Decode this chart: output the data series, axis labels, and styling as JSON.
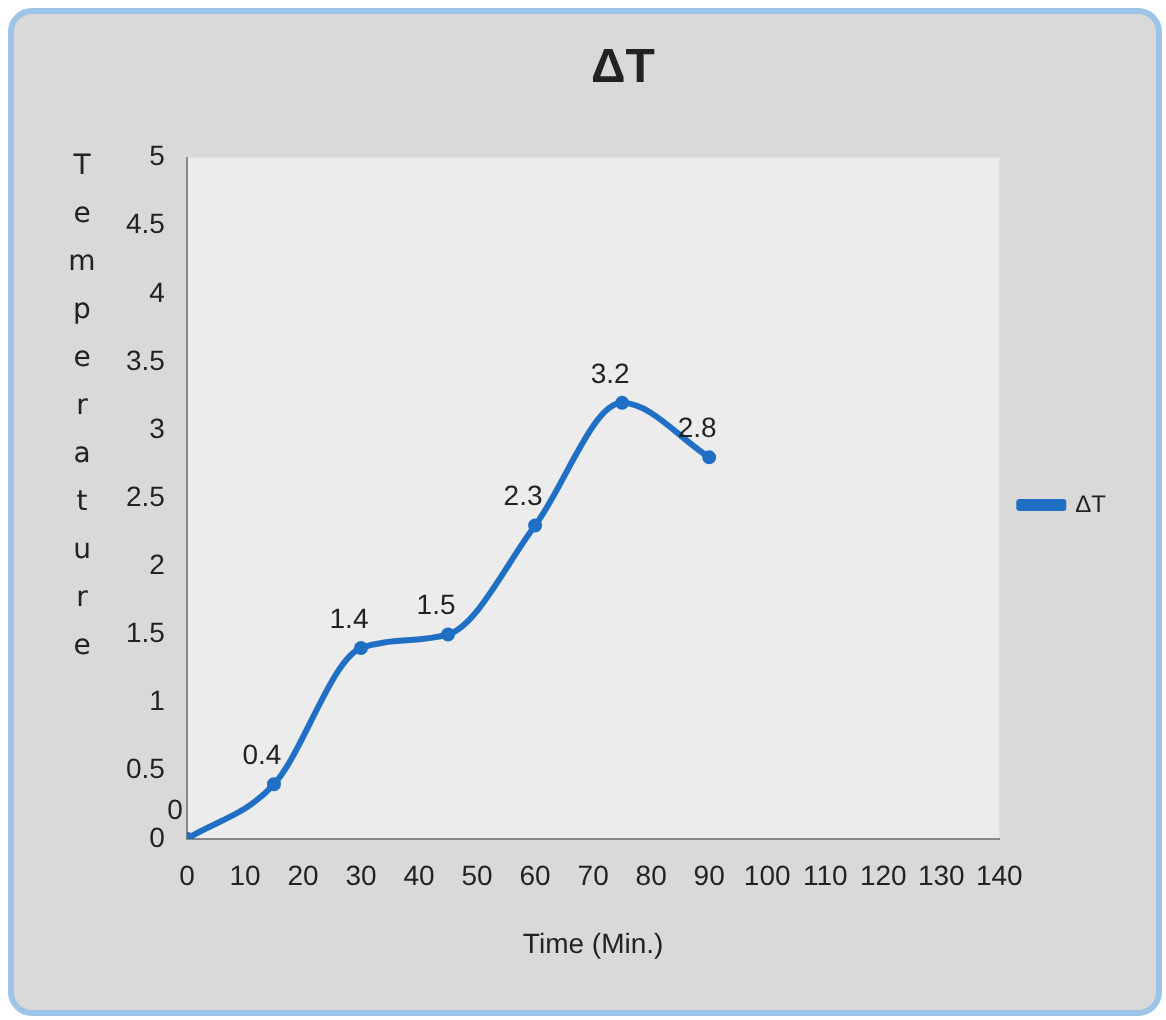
{
  "chart_data": {
    "type": "line",
    "title": "ΔT",
    "xlabel": "Time (Min.)",
    "ylabel": "Temperature",
    "x": [
      0,
      15,
      30,
      45,
      60,
      75,
      90
    ],
    "series": [
      {
        "name": "ΔT",
        "color": "#1f6fc5",
        "values": [
          0,
          0.4,
          1.4,
          1.5,
          2.3,
          3.2,
          2.8
        ]
      }
    ],
    "xlim": [
      0,
      140
    ],
    "xticks": [
      0,
      10,
      20,
      30,
      40,
      50,
      60,
      70,
      80,
      90,
      100,
      110,
      120,
      130,
      140
    ],
    "ylim": [
      0,
      5
    ],
    "yticks": [
      0,
      0.5,
      1,
      1.5,
      2,
      2.5,
      3,
      3.5,
      4,
      4.5,
      5
    ],
    "grid": false,
    "legend": "right",
    "marker": "circle",
    "line_style": "solid",
    "data_labels": true
  }
}
